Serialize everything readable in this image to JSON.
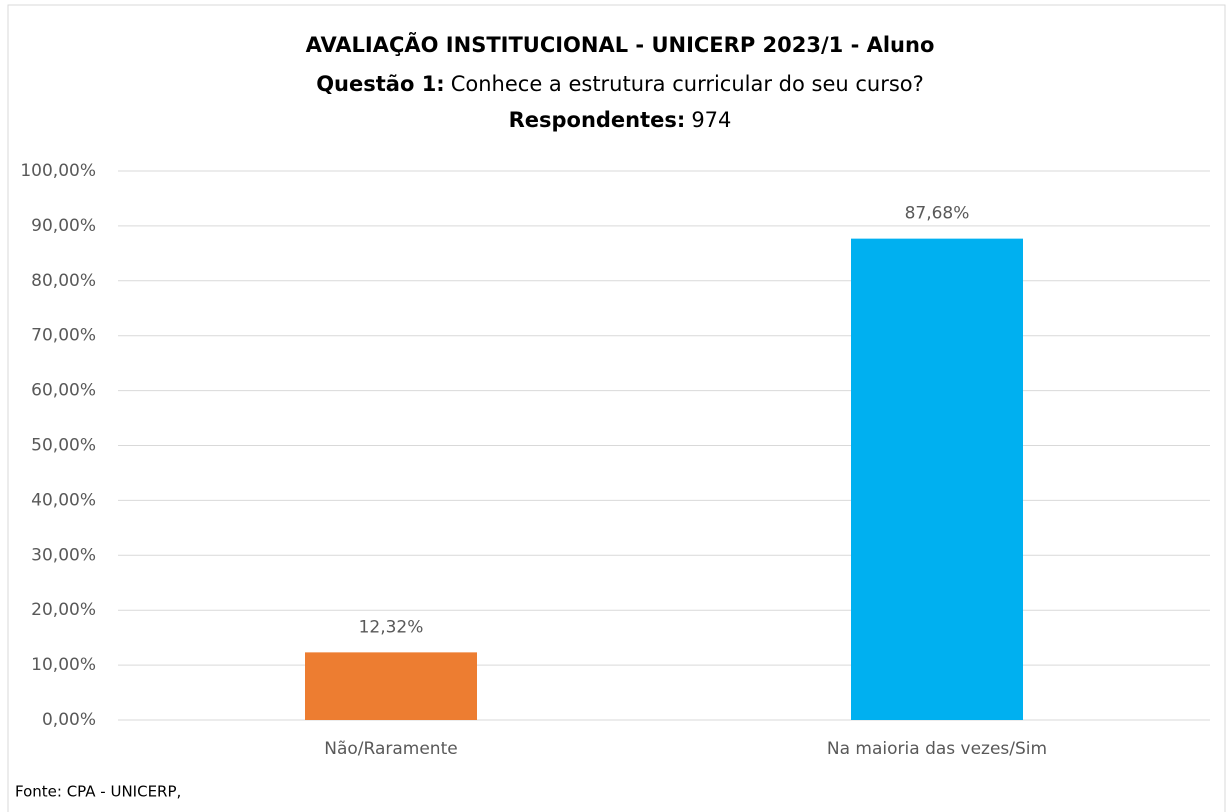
{
  "chart_data": {
    "type": "bar",
    "title": "AVALIAÇÃO INSTITUCIONAL - UNICERP 2023/1 - Aluno",
    "question_label": "Questão 1:",
    "question": "Conhece a estrutura curricular do seu curso?",
    "respondents_label": "Respondentes:",
    "respondents": 974,
    "categories": [
      "Não/Raramente",
      "Na maioria das vezes/Sim"
    ],
    "values": [
      12.32,
      87.68
    ],
    "value_labels": [
      "12,32%",
      "87,68%"
    ],
    "colors": [
      "#ed7d31",
      "#00b0f0"
    ],
    "ylim": [
      0,
      100
    ],
    "yticks": [
      {
        "value": 0,
        "label": "0,00%"
      },
      {
        "value": 10,
        "label": "10,00%"
      },
      {
        "value": 20,
        "label": "20,00%"
      },
      {
        "value": 30,
        "label": "30,00%"
      },
      {
        "value": 40,
        "label": "40,00%"
      },
      {
        "value": 50,
        "label": "50,00%"
      },
      {
        "value": 60,
        "label": "60,00%"
      },
      {
        "value": 70,
        "label": "70,00%"
      },
      {
        "value": 80,
        "label": "80,00%"
      },
      {
        "value": 90,
        "label": "90,00%"
      },
      {
        "value": 100,
        "label": "100,00%"
      }
    ],
    "grid": true,
    "source": "Fonte: CPA - UNICERP,"
  }
}
